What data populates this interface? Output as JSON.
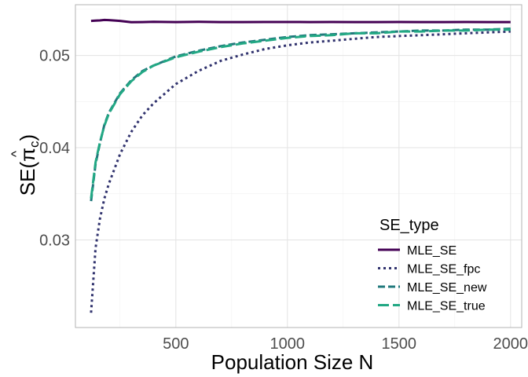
{
  "chart_data": {
    "type": "line",
    "xlabel": "Population Size N",
    "ylabel": "SE(π̂c)",
    "ylabel_parts": {
      "prefix": "SE(",
      "symbol": "π",
      "subscript": "c",
      "suffix": ")"
    },
    "xlim": [
      50,
      2050
    ],
    "ylim": [
      0.0205,
      0.0555
    ],
    "x_ticks": [
      500,
      1000,
      1500,
      2000
    ],
    "x_tick_labels": [
      "500",
      "1000",
      "1500",
      "2000"
    ],
    "y_ticks": [
      0.03,
      0.04,
      0.05
    ],
    "y_tick_labels": [
      "0.03",
      "0.04",
      "0.05"
    ],
    "grid": true,
    "legend": {
      "title": "SE_type",
      "position": "bottom-right"
    },
    "x": [
      120,
      140,
      160,
      180,
      200,
      250,
      300,
      350,
      400,
      500,
      600,
      700,
      800,
      900,
      1000,
      1100,
      1200,
      1300,
      1400,
      1500,
      1600,
      1700,
      1800,
      1900,
      2000
    ],
    "series": [
      {
        "name": "MLE_SE",
        "color": "#440154",
        "dash": "solid",
        "values": [
          0.05375,
          0.05378,
          0.0538,
          0.05385,
          0.05383,
          0.05375,
          0.0536,
          0.05362,
          0.05365,
          0.05362,
          0.05365,
          0.05362,
          0.05362,
          0.05363,
          0.05363,
          0.05362,
          0.05363,
          0.05362,
          0.05362,
          0.05363,
          0.05362,
          0.05362,
          0.05363,
          0.05362,
          0.05362
        ]
      },
      {
        "name": "MLE_SE_fpc",
        "color": "#31336e",
        "dash": "dotted",
        "values": [
          0.0221,
          0.0291,
          0.0323,
          0.0345,
          0.0361,
          0.0393,
          0.0417,
          0.0435,
          0.0448,
          0.0469,
          0.0483,
          0.0494,
          0.0501,
          0.0507,
          0.0511,
          0.0514,
          0.0516,
          0.0518,
          0.052,
          0.0521,
          0.0522,
          0.0523,
          0.0524,
          0.0525,
          0.0526
        ]
      },
      {
        "name": "MLE_SE_new",
        "color": "#21797c",
        "dash": "dashed",
        "values": [
          0.0342,
          0.0382,
          0.0405,
          0.0425,
          0.0438,
          0.0459,
          0.0473,
          0.0483,
          0.0489,
          0.0499,
          0.0505,
          0.051,
          0.0514,
          0.0517,
          0.052,
          0.0522,
          0.0523,
          0.0524,
          0.0525,
          0.0526,
          0.0527,
          0.0527,
          0.0528,
          0.0528,
          0.0529
        ]
      },
      {
        "name": "MLE_SE_true",
        "color": "#22a884",
        "dash": "longdash",
        "values": [
          0.0345,
          0.0384,
          0.0406,
          0.0424,
          0.0437,
          0.0458,
          0.0472,
          0.0482,
          0.0489,
          0.0498,
          0.0504,
          0.0509,
          0.0513,
          0.0516,
          0.0519,
          0.0521,
          0.0522,
          0.0524,
          0.0524,
          0.0526,
          0.0526,
          0.0527,
          0.0527,
          0.0528,
          0.0528
        ]
      }
    ]
  }
}
